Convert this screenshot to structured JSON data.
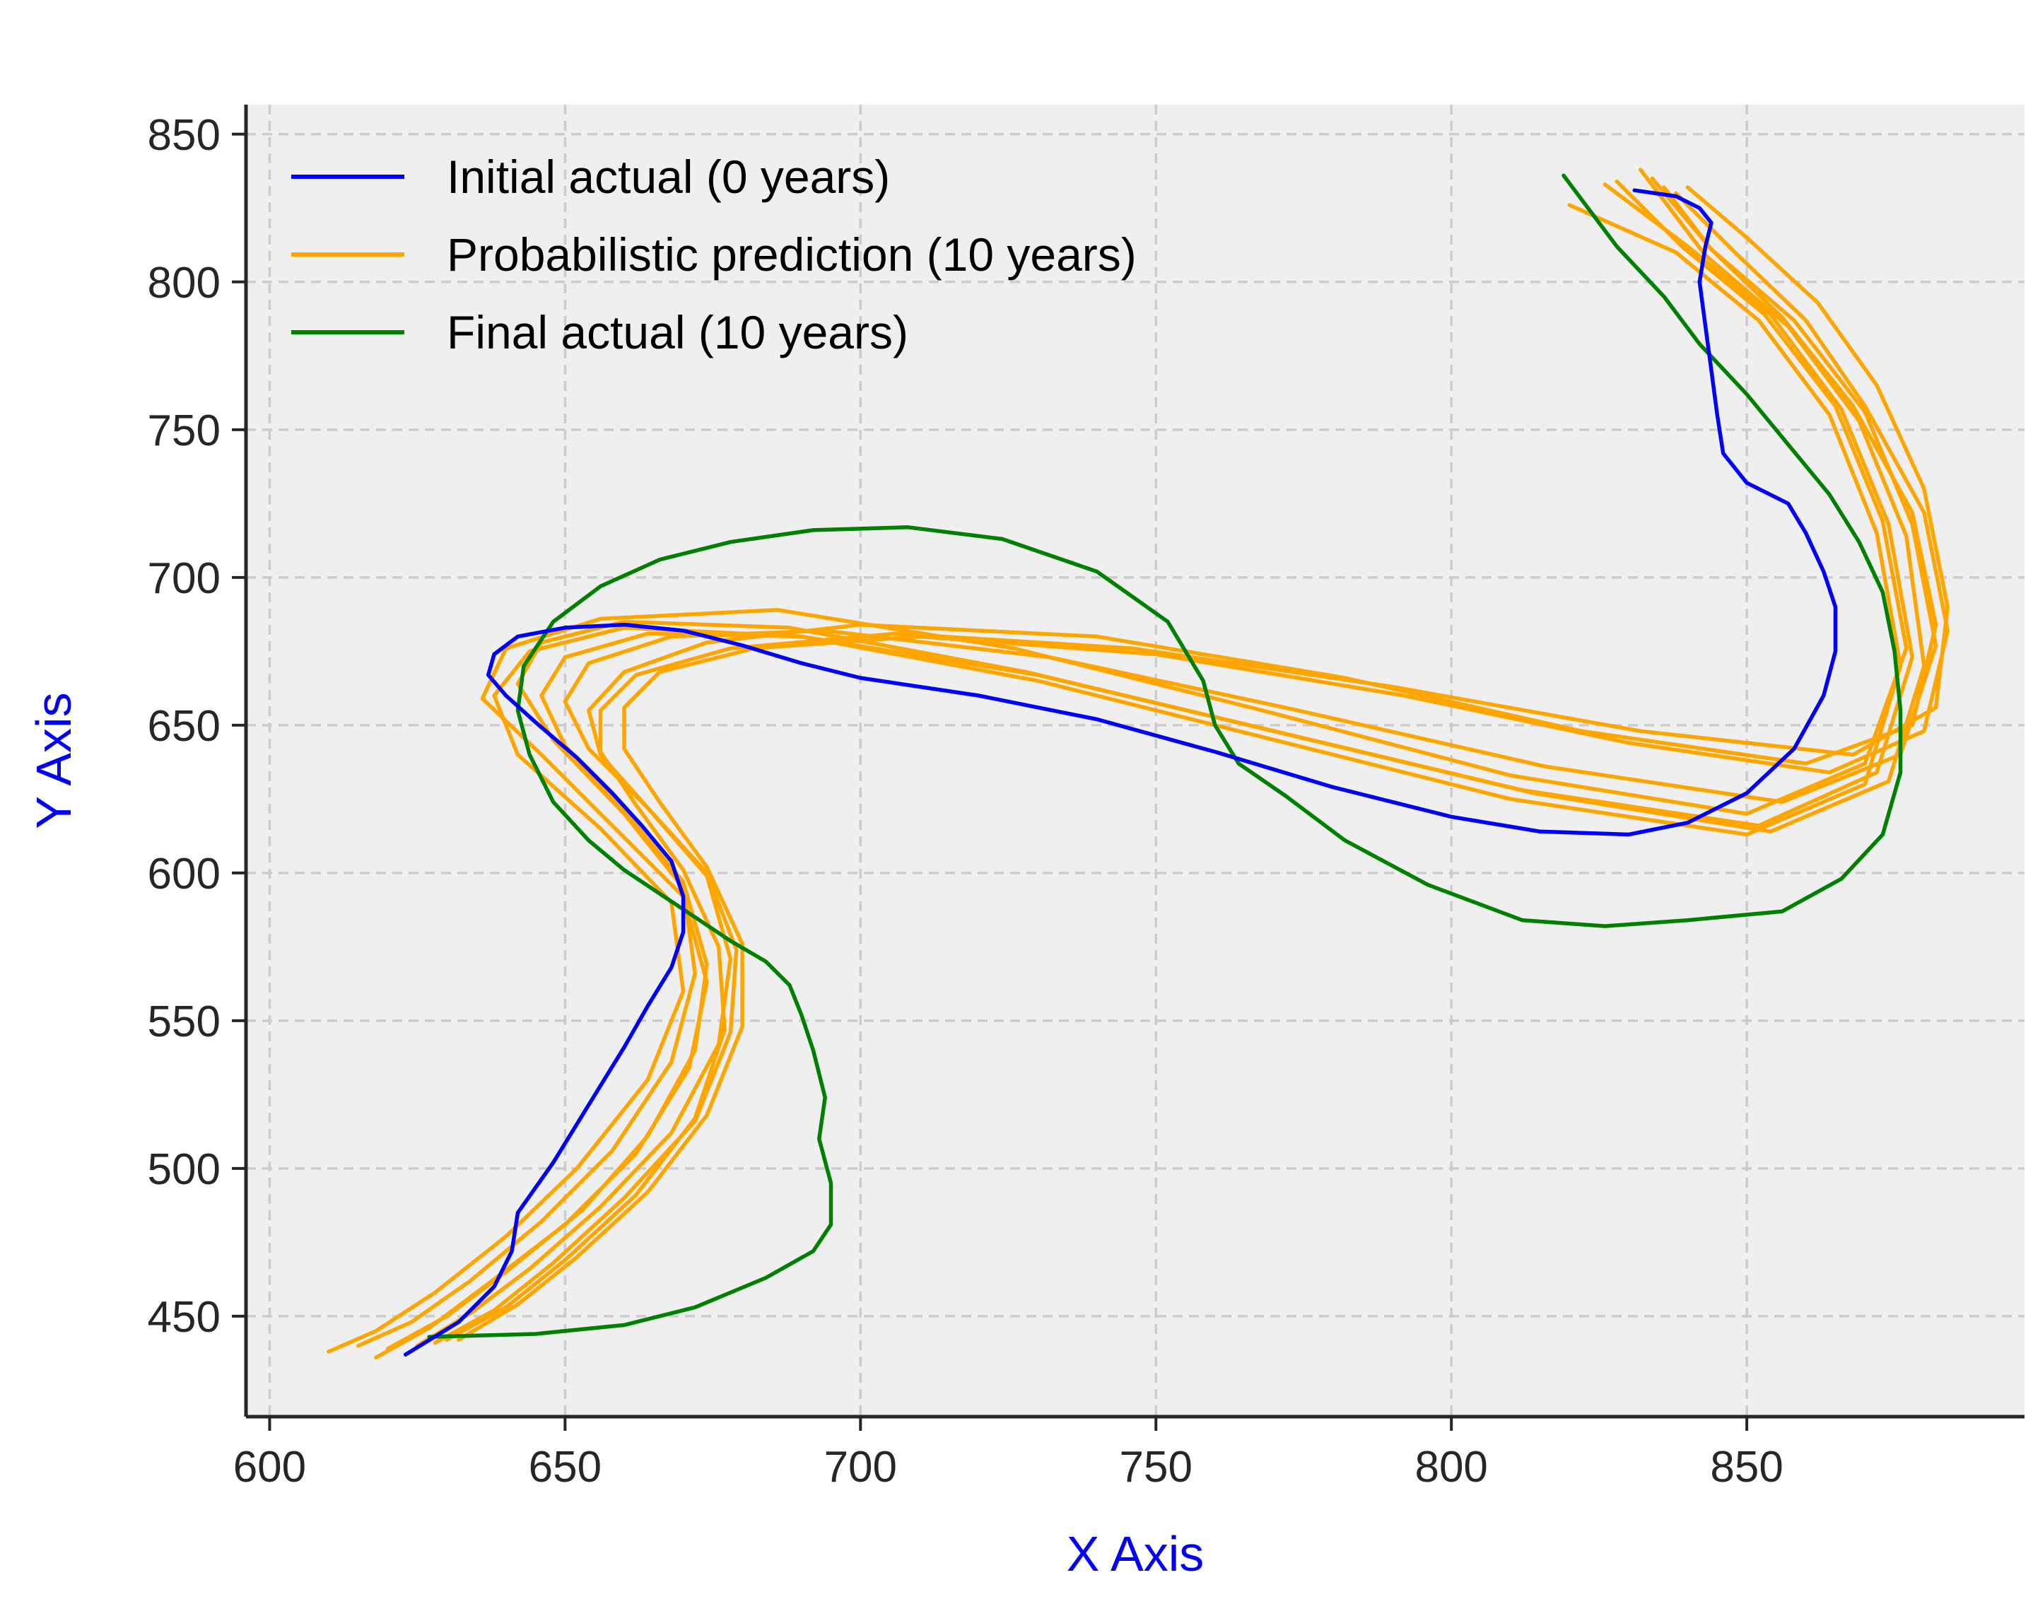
{
  "chart_data": {
    "type": "line",
    "xlabel": "X Axis",
    "ylabel": "Y Axis",
    "xlim": [
      596,
      897
    ],
    "ylim": [
      416,
      860
    ],
    "xticks": [
      600,
      650,
      700,
      750,
      800,
      850
    ],
    "yticks": [
      450,
      500,
      550,
      600,
      650,
      700,
      750,
      800,
      850
    ],
    "grid": true,
    "legend_position": "upper-left",
    "colors": {
      "initial": "#0000ff",
      "prediction": "#ffa500",
      "final": "#008000",
      "plot_background": "#efefef",
      "axis_title": "#0000ff"
    },
    "legend": [
      {
        "label": "Initial actual (0 years)",
        "color": "#0000ff"
      },
      {
        "label": "Probabilistic prediction (10 years)",
        "color": "#ffa500"
      },
      {
        "label": "Final actual (10 years)",
        "color": "#008000"
      }
    ],
    "initial": {
      "name": "Initial actual (0 years)",
      "x": [
        623,
        632,
        638,
        641,
        642,
        648,
        652,
        656,
        660,
        664,
        668,
        670,
        670,
        668,
        663,
        658,
        652,
        645,
        640,
        637,
        638,
        642,
        650,
        660,
        670,
        680,
        690,
        700,
        720,
        740,
        760,
        780,
        800,
        815,
        830,
        840,
        850,
        858,
        863,
        865,
        865,
        863,
        860,
        857,
        850,
        846,
        845,
        844,
        843,
        842,
        843,
        844,
        842,
        838,
        831
      ],
      "y": [
        437,
        448,
        460,
        472,
        485,
        502,
        515,
        528,
        541,
        555,
        568,
        580,
        592,
        604,
        616,
        627,
        639,
        651,
        660,
        667,
        674,
        680,
        683,
        684,
        682,
        677,
        671,
        666,
        660,
        652,
        641,
        629,
        619,
        614,
        613,
        617,
        627,
        642,
        660,
        675,
        690,
        702,
        715,
        725,
        732,
        742,
        755,
        770,
        785,
        800,
        812,
        820,
        825,
        829,
        831
      ]
    },
    "final": {
      "name": "Final actual (10 years)",
      "x": [
        627,
        645,
        660,
        672,
        684,
        692,
        695,
        695,
        693,
        694,
        692,
        690,
        688,
        684,
        678,
        672,
        666,
        660,
        654,
        648,
        644,
        642,
        643,
        648,
        656,
        666,
        678,
        692,
        708,
        724,
        740,
        752,
        758,
        760,
        764,
        772,
        782,
        796,
        812,
        826,
        840,
        856,
        866,
        873,
        876,
        876,
        875,
        873,
        869,
        864,
        857,
        850,
        842,
        836,
        828,
        819
      ],
      "y": [
        443,
        444,
        447,
        453,
        463,
        472,
        481,
        495,
        510,
        524,
        540,
        552,
        562,
        570,
        577,
        585,
        593,
        601,
        611,
        624,
        640,
        655,
        670,
        685,
        697,
        706,
        712,
        716,
        717,
        713,
        702,
        685,
        665,
        650,
        637,
        626,
        611,
        596,
        584,
        582,
        584,
        587,
        598,
        613,
        634,
        655,
        675,
        695,
        712,
        728,
        745,
        762,
        779,
        795,
        812,
        836
      ]
    },
    "predictions": [
      {
        "x": [
          610,
          618,
          628,
          640,
          652,
          664,
          670,
          668,
          656,
          642,
          638,
          644,
          660,
          690,
          730,
          770,
          810,
          850,
          870,
          876,
          872,
          864,
          852,
          838,
          820
        ],
        "y": [
          438,
          445,
          458,
          477,
          500,
          530,
          560,
          590,
          615,
          640,
          660,
          675,
          683,
          680,
          665,
          645,
          625,
          613,
          630,
          670,
          715,
          755,
          787,
          810,
          826
        ]
      },
      {
        "x": [
          615,
          624,
          634,
          646,
          658,
          668,
          672,
          670,
          660,
          648,
          642,
          646,
          660,
          688,
          728,
          770,
          812,
          852,
          872,
          878,
          874,
          866,
          854,
          840,
          826
        ],
        "y": [
          440,
          448,
          462,
          482,
          506,
          536,
          566,
          595,
          620,
          645,
          664,
          678,
          685,
          683,
          668,
          648,
          628,
          616,
          634,
          673,
          718,
          757,
          789,
          812,
          833
        ]
      },
      {
        "x": [
          618,
          627,
          637,
          650,
          662,
          671,
          674,
          670,
          658,
          646,
          636,
          640,
          656,
          686,
          726,
          768,
          810,
          850,
          870,
          877,
          873,
          865,
          853,
          839,
          828
        ],
        "y": [
          436,
          446,
          461,
          481,
          505,
          534,
          563,
          592,
          616,
          640,
          659,
          676,
          686,
          689,
          676,
          655,
          633,
          620,
          637,
          676,
          719,
          758,
          789,
          812,
          834
        ]
      },
      {
        "x": [
          620,
          630,
          640,
          653,
          664,
          672,
          674,
          670,
          660,
          650,
          646,
          650,
          664,
          690,
          730,
          772,
          814,
          854,
          874,
          880,
          877,
          869,
          857,
          843,
          832
        ],
        "y": [
          439,
          450,
          465,
          486,
          511,
          540,
          569,
          597,
          621,
          643,
          660,
          673,
          681,
          680,
          667,
          647,
          627,
          614,
          631,
          670,
          714,
          753,
          785,
          809,
          838
        ]
      },
      {
        "x": [
          625,
          634,
          644,
          656,
          668,
          676,
          678,
          674,
          664,
          654,
          650,
          654,
          668,
          694,
          732,
          774,
          816,
          856,
          876,
          882,
          878,
          870,
          858,
          844,
          834
        ],
        "y": [
          440,
          451,
          466,
          487,
          512,
          542,
          571,
          599,
          622,
          642,
          658,
          671,
          680,
          682,
          673,
          655,
          636,
          624,
          640,
          677,
          718,
          756,
          787,
          811,
          835
        ]
      },
      {
        "x": [
          628,
          638,
          648,
          660,
          672,
          678,
          679,
          674,
          664,
          656,
          654,
          660,
          674,
          700,
          740,
          782,
          822,
          860,
          878,
          882,
          878,
          868,
          856,
          844,
          836
        ],
        "y": [
          441,
          452,
          468,
          490,
          516,
          546,
          574,
          600,
          622,
          640,
          655,
          668,
          678,
          684,
          680,
          666,
          648,
          637,
          650,
          684,
          722,
          758,
          788,
          811,
          832
        ]
      },
      {
        "x": [
          632,
          642,
          652,
          664,
          674,
          680,
          680,
          674,
          666,
          660,
          660,
          666,
          682,
          710,
          750,
          792,
          830,
          864,
          880,
          884,
          880,
          870,
          860,
          848,
          838
        ],
        "y": [
          442,
          454,
          470,
          492,
          518,
          548,
          576,
          602,
          624,
          642,
          656,
          668,
          676,
          680,
          674,
          660,
          644,
          634,
          648,
          682,
          722,
          758,
          787,
          810,
          830
        ]
      },
      {
        "x": [
          630,
          640,
          650,
          662,
          672,
          677,
          676,
          670,
          662,
          656,
          656,
          662,
          678,
          706,
          746,
          790,
          832,
          868,
          882,
          884,
          880,
          872,
          862,
          850,
          840
        ],
        "y": [
          442,
          453,
          469,
          491,
          517,
          547,
          575,
          601,
          623,
          641,
          655,
          667,
          676,
          681,
          676,
          663,
          648,
          640,
          656,
          690,
          730,
          765,
          793,
          815,
          832
        ]
      }
    ]
  }
}
